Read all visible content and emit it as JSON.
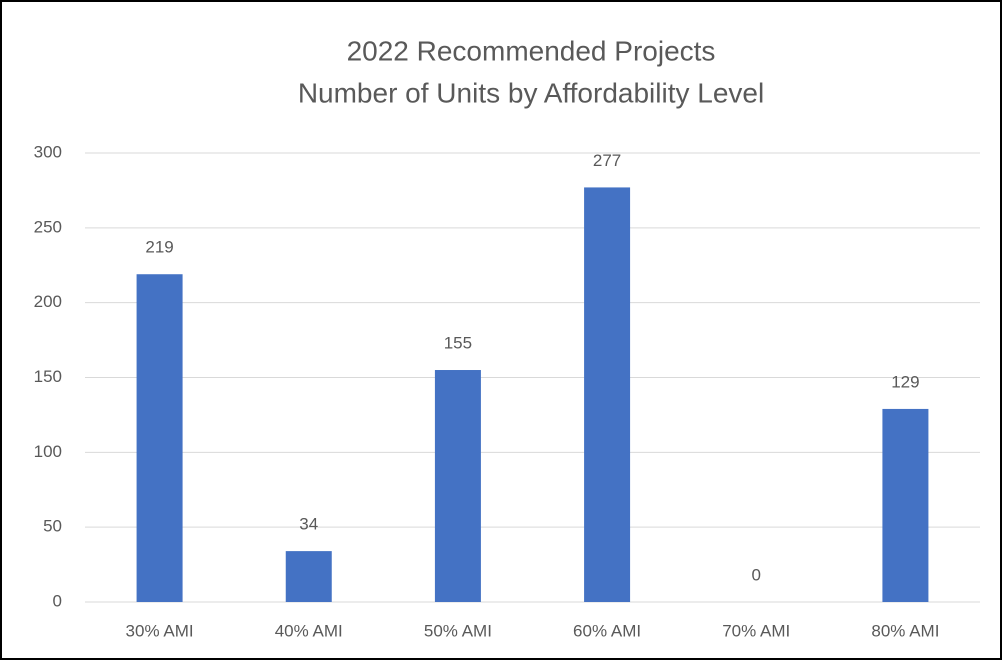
{
  "chart_data": {
    "type": "bar",
    "title": [
      "2022 Recommended Projects",
      "Number of Units by Affordability Level"
    ],
    "categories": [
      "30% AMI",
      "40% AMI",
      "50% AMI",
      "60% AMI",
      "70% AMI",
      "80% AMI"
    ],
    "values": [
      219,
      34,
      155,
      277,
      0,
      129
    ],
    "color": "#4472c4",
    "ylim": [
      0,
      300
    ],
    "yticks": [
      0,
      50,
      100,
      150,
      200,
      250,
      300
    ],
    "grid": true,
    "data_labels": true
  }
}
